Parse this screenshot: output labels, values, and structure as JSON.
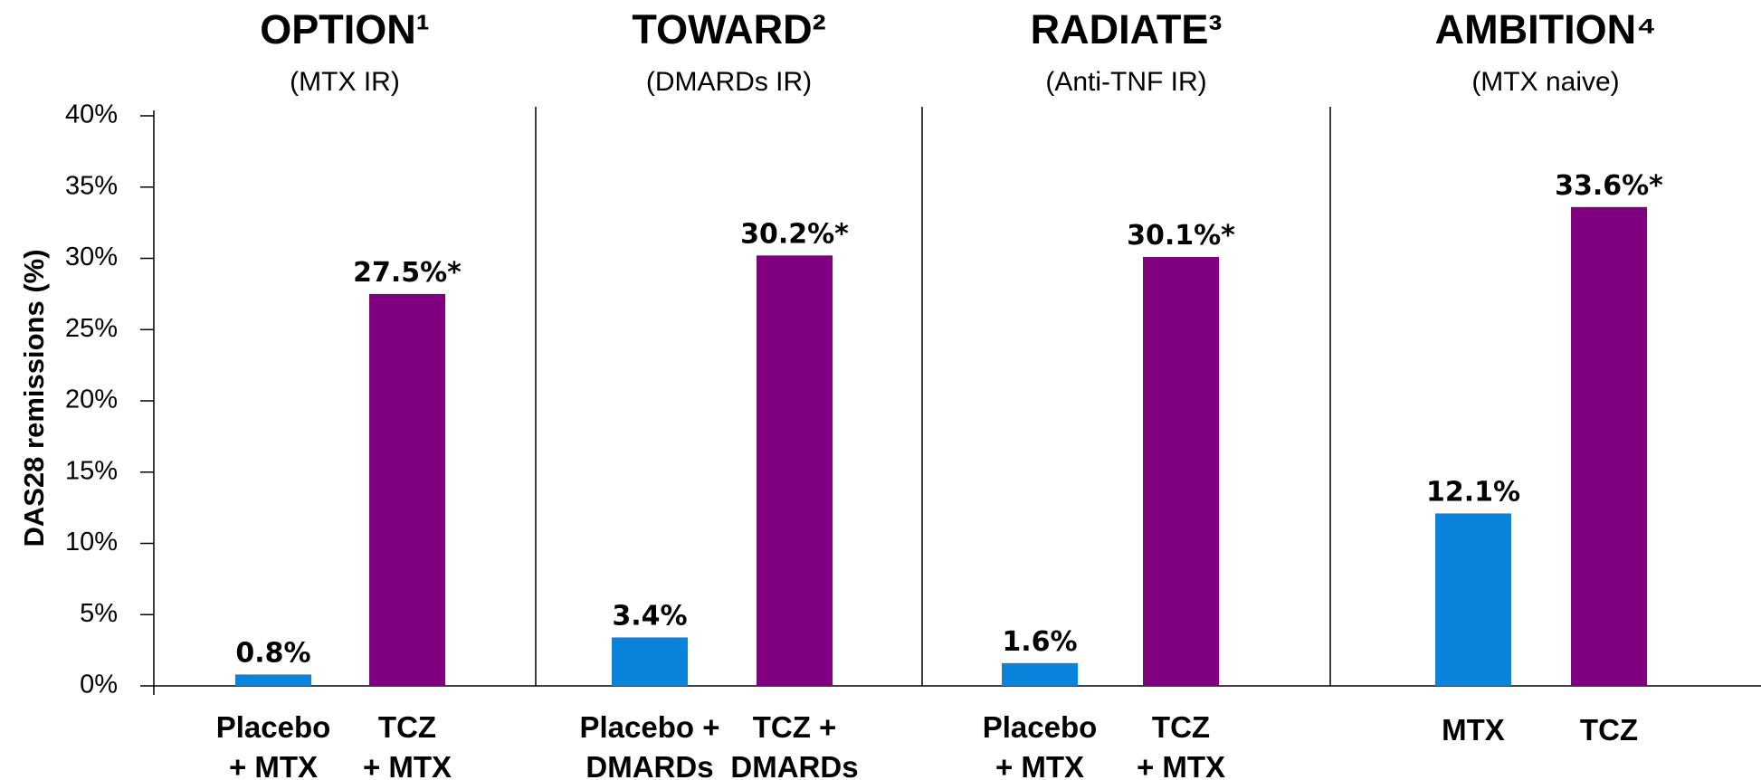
{
  "chart_data": {
    "type": "bar",
    "ylabel": "DAS28 remissions (%)",
    "ylim": [
      0,
      40
    ],
    "yticks": [
      0,
      5,
      10,
      15,
      20,
      25,
      30,
      35,
      40
    ],
    "ytick_labels": [
      "0%",
      "5%",
      "10%",
      "15%",
      "20%",
      "25%",
      "30%",
      "35%",
      "40%"
    ],
    "grid": false,
    "colors": {
      "control": "#0a84db",
      "tcz": "#800080"
    },
    "groups": [
      {
        "title": "OPTION¹",
        "subtitle": "(MTX IR)",
        "bars": [
          {
            "category": [
              "Placebo",
              "+ MTX"
            ],
            "value": 0.8,
            "label": "0.8%",
            "color": "control"
          },
          {
            "category": [
              "TCZ",
              "+ MTX"
            ],
            "value": 27.5,
            "label": "27.5%*",
            "color": "tcz"
          }
        ]
      },
      {
        "title": "TOWARD²",
        "subtitle": "(DMARDs IR)",
        "bars": [
          {
            "category": [
              "Placebo +",
              "DMARDs"
            ],
            "value": 3.4,
            "label": "3.4%",
            "color": "control"
          },
          {
            "category": [
              "TCZ +",
              "DMARDs"
            ],
            "value": 30.2,
            "label": "30.2%*",
            "color": "tcz"
          }
        ]
      },
      {
        "title": "RADIATE³",
        "subtitle": "(Anti-TNF IR)",
        "bars": [
          {
            "category": [
              "Placebo",
              "+ MTX"
            ],
            "value": 1.6,
            "label": "1.6%",
            "color": "control"
          },
          {
            "category": [
              "TCZ",
              "+ MTX"
            ],
            "value": 30.1,
            "label": "30.1%*",
            "color": "tcz"
          }
        ]
      },
      {
        "title": "AMBITION⁴",
        "subtitle": "(MTX naive)",
        "bars": [
          {
            "category": [
              "MTX"
            ],
            "value": 12.1,
            "label": "12.1%",
            "color": "control"
          },
          {
            "category": [
              "TCZ"
            ],
            "value": 33.6,
            "label": "33.6%*",
            "color": "tcz"
          }
        ]
      }
    ]
  }
}
